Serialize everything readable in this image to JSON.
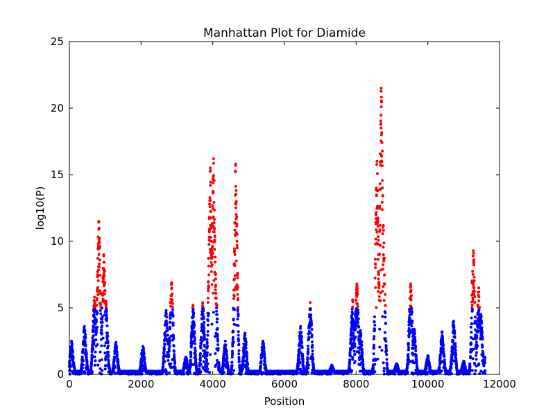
{
  "chart_data": {
    "type": "scatter",
    "title": "Manhattan Plot for Diamide",
    "xlabel": "Position",
    "ylabel": "log10(P)",
    "xlim": [
      0,
      12000
    ],
    "ylim": [
      0,
      25
    ],
    "xticks": [
      0,
      2000,
      4000,
      6000,
      8000,
      10000,
      12000
    ],
    "yticks": [
      0,
      5,
      10,
      15,
      20,
      25
    ],
    "grid": false,
    "legend": "none",
    "threshold": 5,
    "colors": {
      "significant": "#ff0000",
      "non_significant": "#0000ff"
    },
    "x_range_of_points": [
      0,
      11600
    ],
    "peaks": [
      {
        "x": 60,
        "y": 2.5
      },
      {
        "x": 420,
        "y": 3.6
      },
      {
        "x": 700,
        "y": 5.8
      },
      {
        "x": 820,
        "y": 11.5
      },
      {
        "x": 960,
        "y": 9.0
      },
      {
        "x": 1020,
        "y": 5.5
      },
      {
        "x": 1300,
        "y": 2.4
      },
      {
        "x": 2050,
        "y": 2.1
      },
      {
        "x": 2700,
        "y": 4.8
      },
      {
        "x": 2850,
        "y": 6.9
      },
      {
        "x": 3250,
        "y": 1.3
      },
      {
        "x": 3450,
        "y": 5.2
      },
      {
        "x": 3720,
        "y": 5.4
      },
      {
        "x": 3930,
        "y": 15.5
      },
      {
        "x": 4020,
        "y": 16.2
      },
      {
        "x": 4080,
        "y": 7.5
      },
      {
        "x": 4350,
        "y": 2.5
      },
      {
        "x": 4640,
        "y": 15.8
      },
      {
        "x": 4900,
        "y": 3.1
      },
      {
        "x": 5400,
        "y": 2.5
      },
      {
        "x": 6450,
        "y": 3.6
      },
      {
        "x": 6720,
        "y": 5.4
      },
      {
        "x": 7320,
        "y": 0.7
      },
      {
        "x": 7900,
        "y": 5.6
      },
      {
        "x": 8020,
        "y": 6.8
      },
      {
        "x": 8120,
        "y": 3.3
      },
      {
        "x": 8580,
        "y": 16.0
      },
      {
        "x": 8700,
        "y": 21.5
      },
      {
        "x": 8760,
        "y": 11.2
      },
      {
        "x": 9130,
        "y": 0.8
      },
      {
        "x": 9520,
        "y": 6.8
      },
      {
        "x": 9620,
        "y": 3.4
      },
      {
        "x": 10000,
        "y": 1.4
      },
      {
        "x": 10400,
        "y": 3.2
      },
      {
        "x": 10720,
        "y": 4.0
      },
      {
        "x": 11000,
        "y": 1.0
      },
      {
        "x": 11270,
        "y": 9.3
      },
      {
        "x": 11420,
        "y": 6.5
      },
      {
        "x": 11480,
        "y": 4.5
      },
      {
        "x": 11600,
        "y": 1.3
      }
    ]
  }
}
